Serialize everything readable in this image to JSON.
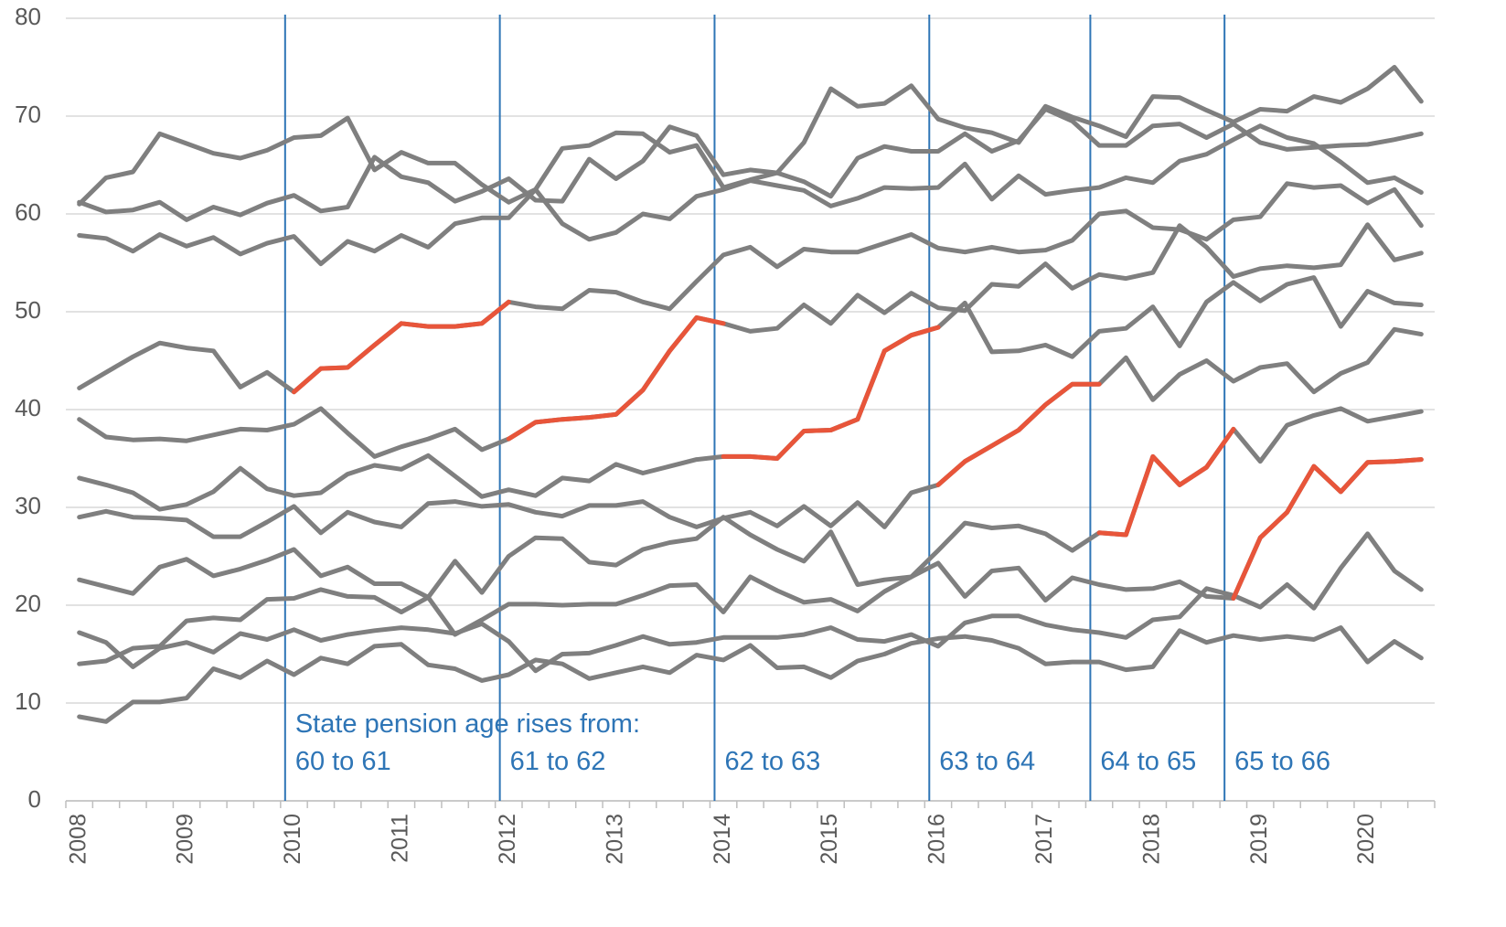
{
  "chart_data": {
    "type": "line",
    "categories": [
      "2008",
      null,
      null,
      null,
      "2009",
      null,
      null,
      null,
      "2010",
      null,
      null,
      null,
      "2011",
      null,
      null,
      null,
      "2012",
      null,
      null,
      null,
      "2013",
      null,
      null,
      null,
      "2014",
      null,
      null,
      null,
      "2015",
      null,
      null,
      null,
      "2016",
      null,
      null,
      null,
      "2017",
      null,
      null,
      null,
      "2018",
      null,
      null,
      null,
      "2019",
      null,
      null,
      null,
      "2020",
      null,
      null
    ],
    "ylim": [
      0,
      80
    ],
    "yticks": [
      0,
      10,
      20,
      30,
      40,
      50,
      60,
      70,
      80
    ],
    "grid": true,
    "color": "#7f7f7f",
    "highlight_color": "#e8553a",
    "series": [
      {
        "values": [
          61,
          63.7,
          64.3,
          68.2,
          67.2,
          66.2,
          65.7,
          66.5,
          67.8,
          68,
          69.8,
          64.5,
          66.3,
          65.2,
          65.2,
          63,
          61.2,
          62.5,
          66.7,
          67,
          68.3,
          68.2,
          66.3,
          67,
          62.7,
          63.5,
          64.2,
          67.3,
          72.8,
          71,
          71.3,
          73.1,
          69.7,
          68.8,
          68.3,
          67.3,
          71,
          69.9,
          69,
          67.9,
          72,
          71.9,
          70.6,
          69.4,
          70.7,
          70.5,
          72,
          71.4,
          72.8,
          75,
          71.5
        ]
      },
      {
        "values": [
          61.2,
          60.2,
          60.4,
          61.2,
          59.4,
          60.7,
          59.9,
          61.1,
          61.9,
          60.3,
          60.7,
          65.8,
          63.8,
          63.2,
          61.3,
          62.3,
          63.6,
          61.4,
          61.3,
          65.6,
          63.6,
          65.4,
          68.9,
          68,
          64,
          64.5,
          64.2,
          63.3,
          61.8,
          65.7,
          66.9,
          66.4,
          66.4,
          68.2,
          66.4,
          67.5,
          70.7,
          69.5,
          67,
          67,
          69,
          69.2,
          67.8,
          69.2,
          67.3,
          66.6,
          66.8,
          67,
          67.1,
          67.6,
          68.2
        ]
      },
      {
        "values": [
          57.8,
          57.5,
          56.2,
          57.9,
          56.7,
          57.6,
          55.9,
          57,
          57.7,
          54.9,
          57.2,
          56.2,
          57.8,
          56.6,
          59,
          59.6,
          59.6,
          62.5,
          59,
          57.4,
          58.1,
          60,
          59.5,
          61.8,
          62.5,
          63.4,
          62.9,
          62.4,
          60.8,
          61.6,
          62.7,
          62.6,
          62.7,
          65.1,
          61.5,
          63.9,
          62,
          62.4,
          62.7,
          63.7,
          63.2,
          65.4,
          66.1,
          67.6,
          69,
          67.8,
          67.2,
          65.3,
          63.2,
          63.7,
          62.2
        ]
      },
      {
        "values": [
          42.2,
          43.8,
          45.4,
          46.8,
          46.3,
          46,
          42.3,
          43.8,
          41.8,
          44.2,
          44.3,
          46.6,
          48.8,
          48.5,
          48.5,
          48.8,
          51,
          50.5,
          50.3,
          52.2,
          52,
          51,
          50.3,
          53.1,
          55.8,
          56.6,
          54.6,
          56.4,
          56.1,
          56.1,
          57,
          57.9,
          56.5,
          56.1,
          56.6,
          56.1,
          56.3,
          57.3,
          60,
          60.3,
          58.6,
          58.4,
          57.4,
          59.4,
          59.7,
          63.1,
          62.7,
          62.9,
          61.1,
          62.5,
          58.8
        ],
        "highlight": [
          8,
          16
        ]
      },
      {
        "values": [
          39,
          37.2,
          36.9,
          37,
          36.8,
          37.4,
          38,
          37.9,
          38.5,
          40.1,
          37.6,
          35.2,
          36.2,
          37,
          38,
          35.9,
          37,
          38.7,
          39,
          39.2,
          39.5,
          42,
          46,
          49.4,
          48.8,
          48,
          48.3,
          50.7,
          48.8,
          51.7,
          49.9,
          51.9,
          50.4,
          50.1,
          52.8,
          52.6,
          54.9,
          52.4,
          53.8,
          53.4,
          54,
          58.8,
          56.6,
          53.6,
          54.4,
          54.7,
          54.5,
          54.8,
          58.9,
          55.3,
          56
        ],
        "highlight": [
          16,
          24
        ]
      },
      {
        "values": [
          33,
          32.3,
          31.5,
          29.8,
          30.3,
          31.6,
          34,
          31.9,
          31.2,
          31.5,
          33.4,
          34.3,
          33.9,
          35.3,
          33.2,
          31.1,
          31.8,
          31.2,
          33,
          32.7,
          34.4,
          33.5,
          34.2,
          34.9,
          35.2,
          35.2,
          35,
          37.8,
          37.9,
          39,
          46,
          47.6,
          48.4,
          50.9,
          45.9,
          46,
          46.6,
          45.4,
          48,
          48.3,
          50.5,
          46.5,
          51,
          53,
          51.1,
          52.8,
          53.5,
          48.5,
          52.1,
          50.9,
          50.7
        ],
        "highlight": [
          24,
          32
        ]
      },
      {
        "values": [
          29,
          29.6,
          29,
          28.9,
          28.7,
          27,
          27,
          28.5,
          30.1,
          27.4,
          29.5,
          28.5,
          28,
          30.4,
          30.6,
          30.1,
          30.3,
          29.5,
          29.1,
          30.2,
          30.2,
          30.6,
          29,
          28,
          28.9,
          29.5,
          28.1,
          30.1,
          28.1,
          30.5,
          28,
          31.5,
          32.3,
          34.7,
          36.3,
          37.9,
          40.5,
          42.6,
          42.6,
          45.3,
          41,
          43.6,
          45,
          42.9,
          44.3,
          44.7,
          41.8,
          43.7,
          44.8,
          48.2,
          47.7
        ],
        "highlight": [
          32,
          38
        ]
      },
      {
        "values": [
          22.6,
          21.9,
          21.2,
          23.9,
          24.7,
          23,
          23.7,
          24.6,
          25.7,
          23,
          23.9,
          22.2,
          22.2,
          20.8,
          24.5,
          21.3,
          25,
          26.9,
          26.8,
          24.4,
          24.1,
          25.7,
          26.4,
          26.8,
          29,
          27.2,
          25.7,
          24.5,
          27.5,
          22.1,
          22.6,
          22.9,
          25.6,
          28.4,
          27.9,
          28.1,
          27.3,
          25.6,
          27.4,
          27.2,
          35.2,
          32.3,
          34.1,
          38,
          34.7,
          38.4,
          39.4,
          40.1,
          38.8,
          39.3,
          39.8
        ],
        "highlight": [
          38,
          43
        ]
      },
      {
        "values": [
          17.2,
          16.2,
          13.7,
          15.6,
          16.2,
          15.2,
          17.1,
          16.5,
          17.5,
          16.4,
          17,
          17.4,
          17.7,
          17.5,
          17.1,
          18.1,
          16.3,
          13.3,
          15,
          15.1,
          15.9,
          16.8,
          16,
          16.2,
          16.7,
          16.7,
          16.7,
          17,
          17.7,
          16.5,
          16.3,
          17,
          15.8,
          18.2,
          18.9,
          18.9,
          18,
          17.5,
          17.2,
          16.7,
          18.5,
          18.8,
          21.7,
          21,
          19.8,
          22.1,
          19.7,
          23.8,
          27.3,
          23.5,
          21.6
        ]
      },
      {
        "values": [
          14,
          14.3,
          15.6,
          15.8,
          18.4,
          18.7,
          18.5,
          20.6,
          20.7,
          21.6,
          20.9,
          20.8,
          19.3,
          20.8,
          17,
          18.5,
          20.1,
          20.1,
          20,
          20.1,
          20.1,
          21,
          22,
          22.1,
          19.3,
          22.9,
          21.5,
          20.3,
          20.6,
          19.4,
          21.4,
          22.9,
          24.3,
          20.9,
          23.5,
          23.8,
          20.5,
          22.8,
          22.1,
          21.6,
          21.7,
          22.4,
          20.9,
          20.7,
          26.9,
          29.5,
          34.2,
          31.6,
          34.6,
          34.7,
          34.9
        ],
        "highlight": [
          43,
          50
        ]
      },
      {
        "values": [
          8.6,
          8.1,
          10.1,
          10.1,
          10.5,
          13.5,
          12.6,
          14.3,
          12.9,
          14.6,
          14,
          15.8,
          16,
          13.9,
          13.5,
          12.3,
          12.9,
          14.4,
          14,
          12.5,
          13.1,
          13.7,
          13.1,
          14.9,
          14.4,
          15.9,
          13.6,
          13.7,
          12.6,
          14.3,
          15,
          16.1,
          16.6,
          16.8,
          16.4,
          15.6,
          14,
          14.2,
          14.2,
          13.4,
          13.7,
          17.4,
          16.2,
          16.9,
          16.5,
          16.8,
          16.5,
          17.7,
          14.2,
          16.3,
          14.6
        ]
      }
    ],
    "annotation_title": "State pension age rises from:",
    "annotation_color": "#2e75b6",
    "annotations": [
      {
        "x": 8,
        "label": "60 to 61"
      },
      {
        "x": 16,
        "label": "61 to 62"
      },
      {
        "x": 24,
        "label": "62 to 63"
      },
      {
        "x": 32,
        "label": "63 to 64"
      },
      {
        "x": 38,
        "label": "64 to 65"
      },
      {
        "x": 43,
        "label": "65 to 66"
      }
    ]
  }
}
